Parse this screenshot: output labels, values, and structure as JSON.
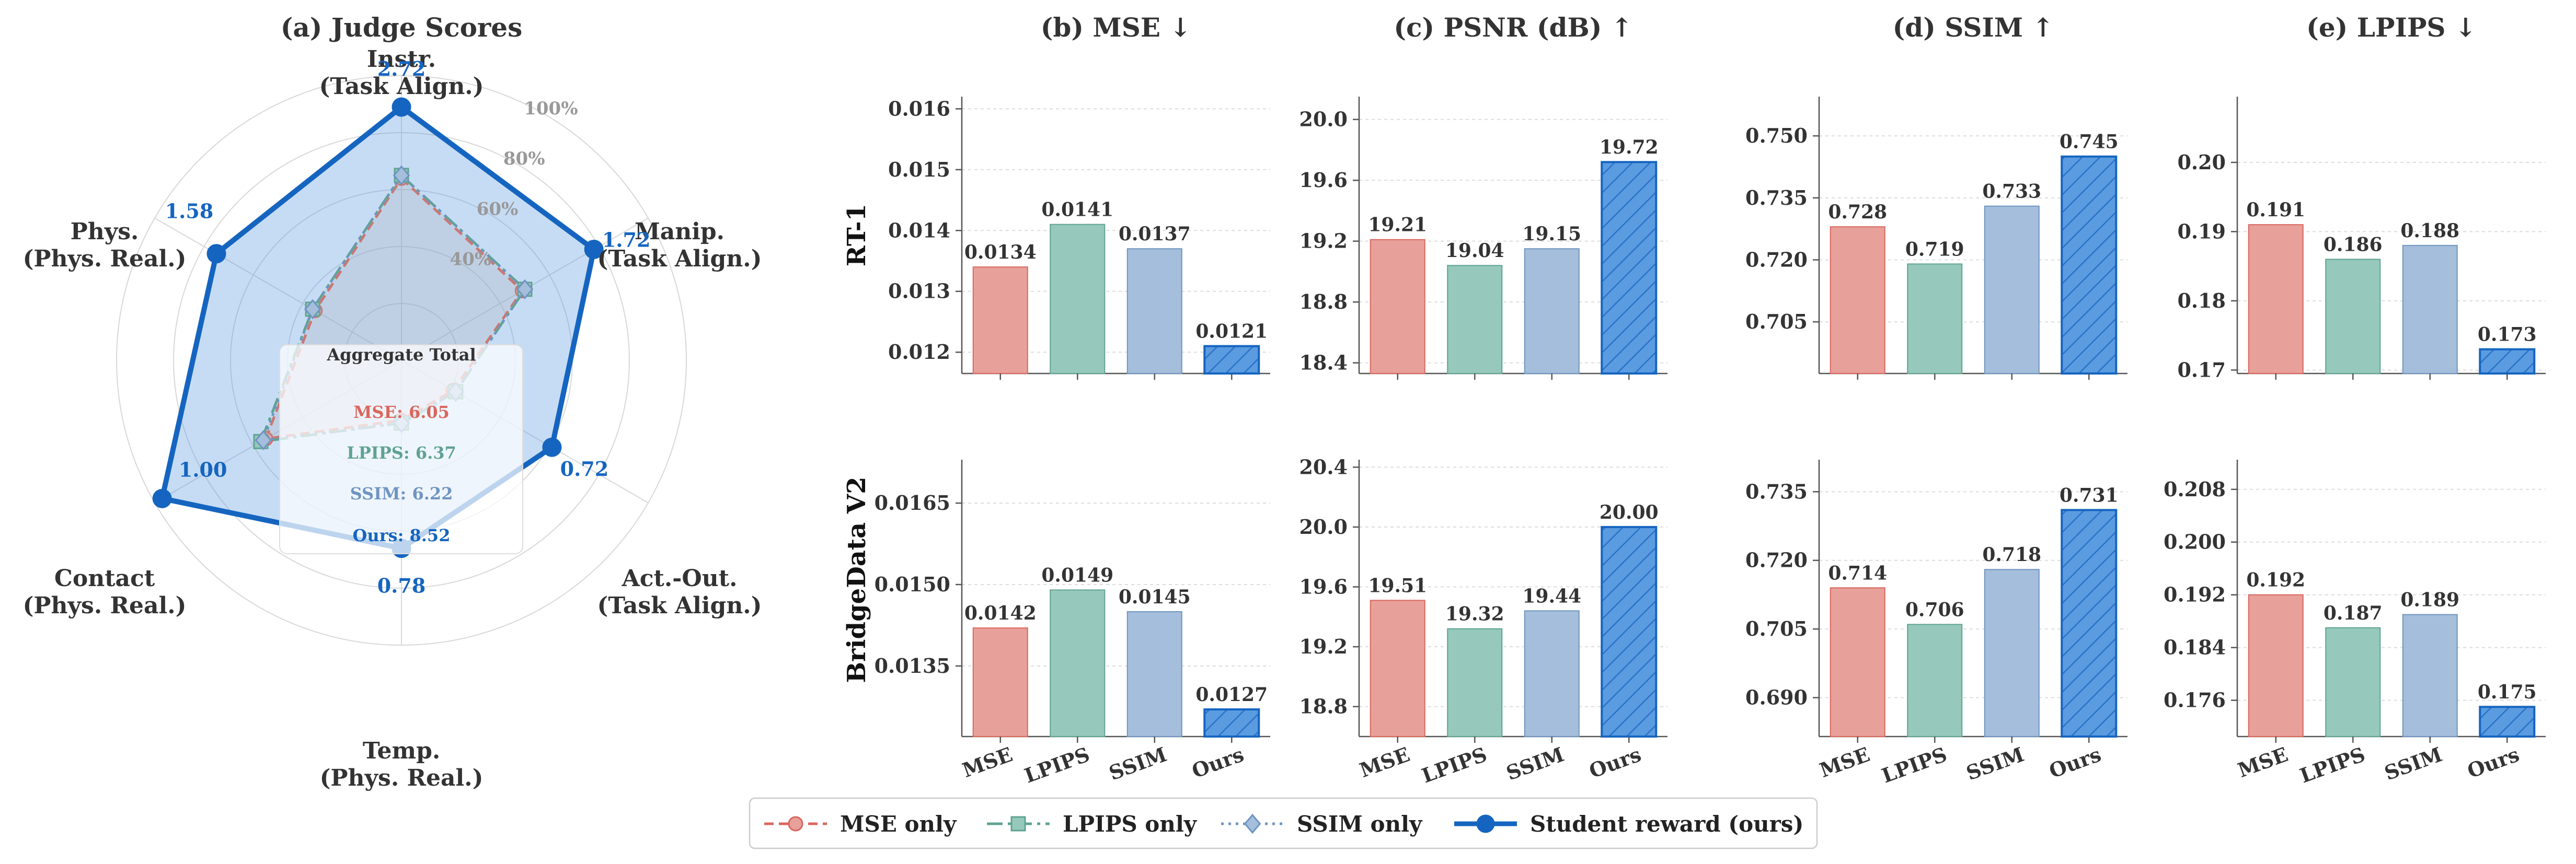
{
  "colors": {
    "mse": "#e8a09a",
    "mse_line": "#d9675e",
    "lpips": "#96c9bb",
    "lpips_line": "#5fa392",
    "ssim": "#a4bedb",
    "ssim_line": "#6f95c0",
    "ours": "#5b9be0",
    "ours_line": "#1565c0",
    "ours_text": "#1565c0",
    "text": "#333333"
  },
  "legend": {
    "items": [
      {
        "key": "mse",
        "label": "MSE only",
        "marker": "circle",
        "dash": "18,10"
      },
      {
        "key": "lpips",
        "label": "LPIPS only",
        "marker": "square",
        "dash": "30,10,6,10"
      },
      {
        "key": "ssim",
        "label": "SSIM only",
        "marker": "diamond",
        "dash": "5,9"
      },
      {
        "key": "ours",
        "label": "Student reward (ours)",
        "marker": "circle",
        "dash": ""
      }
    ]
  },
  "chart_data": [
    {
      "id": "radar",
      "type": "radar",
      "title": "(a) Judge Scores",
      "axes": [
        {
          "name": "Instr.",
          "group": "(Task Align.)"
        },
        {
          "name": "Manip.",
          "group": "(Task Align.)"
        },
        {
          "name": "Act.-Out.",
          "group": "(Task Align.)"
        },
        {
          "name": "Temp.",
          "group": "(Phys. Real.)"
        },
        {
          "name": "Contact",
          "group": "(Phys. Real.)"
        },
        {
          "name": "Phys.",
          "group": "(Phys. Real.)"
        }
      ],
      "ring_labels": [
        "40%",
        "60%",
        "80%",
        "100%"
      ],
      "ring_levels": [
        0.4,
        0.6,
        0.8,
        1.0
      ],
      "series": [
        {
          "key": "mse",
          "fractions": [
            0.64,
            0.49,
            0.21,
            0.21,
            0.55,
            0.35
          ]
        },
        {
          "key": "lpips",
          "fractions": [
            0.65,
            0.5,
            0.22,
            0.22,
            0.57,
            0.36
          ]
        },
        {
          "key": "ssim",
          "fractions": [
            0.65,
            0.5,
            0.22,
            0.22,
            0.56,
            0.36
          ]
        },
        {
          "key": "ours",
          "fractions": [
            0.89,
            0.78,
            0.61,
            0.66,
            0.97,
            0.75
          ],
          "values": [
            "2.72",
            "1.72",
            "0.72",
            "0.78",
            "1.00",
            "1.58"
          ]
        }
      ],
      "aggregate": {
        "title": "Aggregate Total",
        "items": [
          {
            "key": "mse",
            "text": "MSE: 6.05"
          },
          {
            "key": "lpips",
            "text": "LPIPS: 6.37"
          },
          {
            "key": "ssim",
            "text": "SSIM: 6.22"
          },
          {
            "key": "ours",
            "text": "Ours: 8.52"
          }
        ]
      }
    },
    {
      "id": "b-rt1",
      "type": "bar",
      "title": "(b) MSE ↓",
      "row_label": "RT-1",
      "categories": [
        "MSE",
        "LPIPS",
        "SSIM",
        "Ours"
      ],
      "values": [
        0.0134,
        0.0141,
        0.0137,
        0.0121
      ],
      "labels": [
        "0.0134",
        "0.0141",
        "0.0137",
        "0.0121"
      ],
      "ylim": [
        0.01165,
        0.0162
      ],
      "yticks": [
        0.012,
        0.013,
        0.014,
        0.015,
        0.016
      ],
      "ytick_labels": [
        "0.012",
        "0.013",
        "0.014",
        "0.015",
        "0.016"
      ]
    },
    {
      "id": "c-rt1",
      "type": "bar",
      "title": "(c) PSNR (dB) ↑",
      "categories": [
        "MSE",
        "LPIPS",
        "SSIM",
        "Ours"
      ],
      "values": [
        19.21,
        19.04,
        19.15,
        19.72
      ],
      "labels": [
        "19.21",
        "19.04",
        "19.15",
        "19.72"
      ],
      "ylim": [
        18.33,
        20.15
      ],
      "yticks": [
        18.4,
        18.8,
        19.2,
        19.6,
        20.0
      ],
      "ytick_labels": [
        "18.4",
        "18.8",
        "19.2",
        "19.6",
        "20.0"
      ]
    },
    {
      "id": "d-rt1",
      "type": "bar",
      "title": "(d) SSIM ↑",
      "categories": [
        "MSE",
        "LPIPS",
        "SSIM",
        "Ours"
      ],
      "values": [
        0.728,
        0.719,
        0.733,
        0.745
      ],
      "labels": [
        "0.728",
        "0.719",
        "0.733",
        "0.745"
      ],
      "ylim": [
        0.6925,
        0.7595
      ],
      "yticks": [
        0.705,
        0.72,
        0.735,
        0.75
      ],
      "ytick_labels": [
        "0.705",
        "0.720",
        "0.735",
        "0.750"
      ]
    },
    {
      "id": "e-rt1",
      "type": "bar",
      "title": "(e) LPIPS ↓",
      "categories": [
        "MSE",
        "LPIPS",
        "SSIM",
        "Ours"
      ],
      "values": [
        0.191,
        0.186,
        0.188,
        0.173
      ],
      "labels": [
        "0.191",
        "0.186",
        "0.188",
        "0.173"
      ],
      "ylim": [
        0.1695,
        0.2095
      ],
      "yticks": [
        0.17,
        0.18,
        0.19,
        0.2
      ],
      "ytick_labels": [
        "0.17",
        "0.18",
        "0.19",
        "0.20"
      ]
    },
    {
      "id": "b-br",
      "type": "bar",
      "row_label": "BridgeData V2",
      "categories": [
        "MSE",
        "LPIPS",
        "SSIM",
        "Ours"
      ],
      "values": [
        0.0142,
        0.0149,
        0.0145,
        0.0127
      ],
      "labels": [
        "0.0142",
        "0.0149",
        "0.0145",
        "0.0127"
      ],
      "ylim": [
        0.0122,
        0.0173
      ],
      "yticks": [
        0.0135,
        0.015,
        0.0165
      ],
      "ytick_labels": [
        "0.0135",
        "0.0150",
        "0.0165"
      ]
    },
    {
      "id": "c-br",
      "type": "bar",
      "categories": [
        "MSE",
        "LPIPS",
        "SSIM",
        "Ours"
      ],
      "values": [
        19.51,
        19.32,
        19.44,
        20.0
      ],
      "labels": [
        "19.51",
        "19.32",
        "19.44",
        "20.00"
      ],
      "ylim": [
        18.6,
        20.45
      ],
      "yticks": [
        18.8,
        19.2,
        19.6,
        20.0,
        20.4
      ],
      "ytick_labels": [
        "18.8",
        "19.2",
        "19.6",
        "20.0",
        "20.4"
      ]
    },
    {
      "id": "d-br",
      "type": "bar",
      "categories": [
        "MSE",
        "LPIPS",
        "SSIM",
        "Ours"
      ],
      "values": [
        0.714,
        0.706,
        0.718,
        0.731
      ],
      "labels": [
        "0.714",
        "0.706",
        "0.718",
        "0.731"
      ],
      "ylim": [
        0.6815,
        0.742
      ],
      "yticks": [
        0.69,
        0.705,
        0.72,
        0.735
      ],
      "ytick_labels": [
        "0.690",
        "0.705",
        "0.720",
        "0.735"
      ]
    },
    {
      "id": "e-br",
      "type": "bar",
      "categories": [
        "MSE",
        "LPIPS",
        "SSIM",
        "Ours"
      ],
      "values": [
        0.192,
        0.187,
        0.189,
        0.175
      ],
      "labels": [
        "0.192",
        "0.187",
        "0.189",
        "0.175"
      ],
      "ylim": [
        0.1705,
        0.2125
      ],
      "yticks": [
        0.176,
        0.184,
        0.192,
        0.2,
        0.208
      ],
      "ytick_labels": [
        "0.176",
        "0.184",
        "0.192",
        "0.200",
        "0.208"
      ]
    }
  ]
}
